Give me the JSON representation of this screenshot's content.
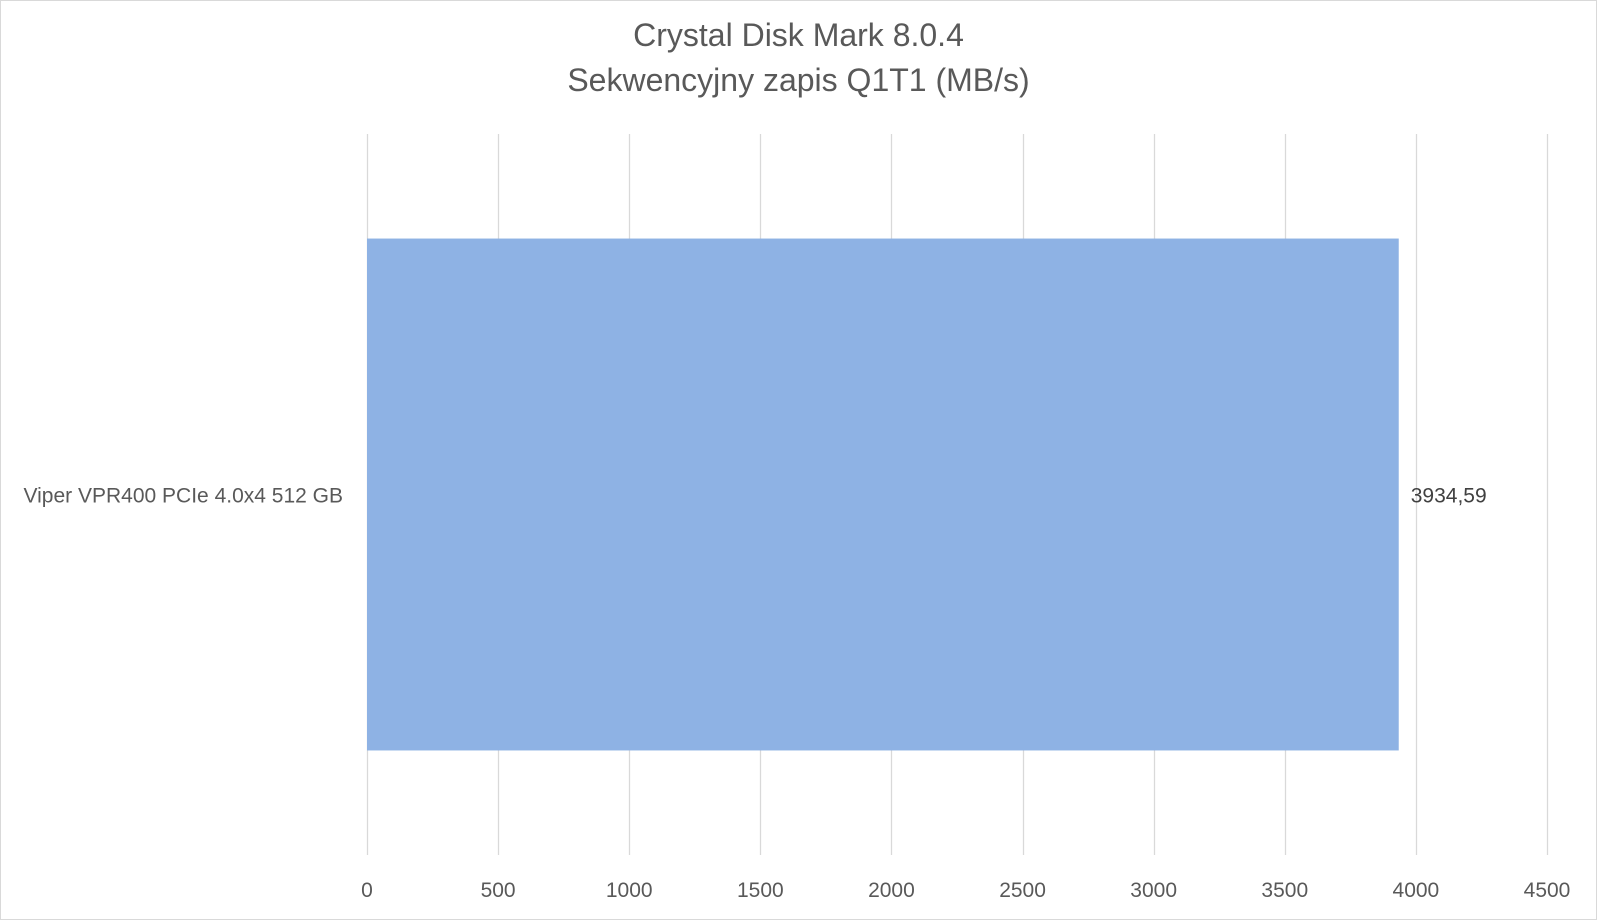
{
  "chart_data": {
    "type": "bar",
    "orientation": "horizontal",
    "title": "Crystal Disk Mark 8.0.4",
    "subtitle": "Sekwencyjny zapis Q1T1 (MB/s)",
    "categories": [
      "Viper VPR400 PCIe 4.0x4 512 GB"
    ],
    "values": [
      3934.59
    ],
    "data_labels": [
      "3934,59"
    ],
    "xlim": [
      0,
      4500
    ],
    "ticks": [
      0,
      500,
      1000,
      1500,
      2000,
      2500,
      3000,
      3500,
      4000,
      4500
    ],
    "tick_labels": [
      "0",
      "500",
      "1000",
      "1500",
      "2000",
      "2500",
      "3000",
      "3500",
      "4000",
      "4500"
    ],
    "grid": true,
    "legend": "none",
    "colors": {
      "bar": "#8eb2e4",
      "grid": "#d9d9d9",
      "text": "#595959"
    }
  }
}
